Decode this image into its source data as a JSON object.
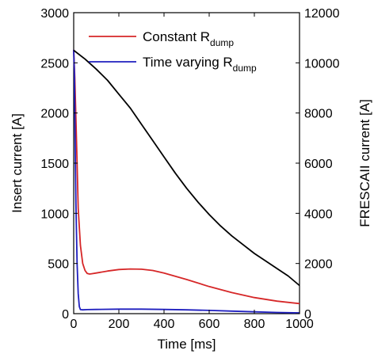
{
  "chart_data": {
    "type": "line",
    "x_axis": {
      "label": "Time [ms]",
      "range": [
        0,
        1000
      ],
      "ticks": [
        0,
        200,
        400,
        600,
        800,
        1000
      ]
    },
    "y_left_axis": {
      "label": "Insert current [A]",
      "range": [
        0,
        3000
      ],
      "ticks": [
        0,
        500,
        1000,
        1500,
        2000,
        2500,
        3000
      ]
    },
    "y_right_axis": {
      "label": "FRESCAII current [A]",
      "range": [
        0,
        12000
      ],
      "ticks": [
        0,
        2000,
        4000,
        6000,
        8000,
        10000,
        12000
      ]
    },
    "grid": false,
    "legend": {
      "position": "top-left",
      "entries": [
        {
          "label": "Constant R",
          "subscript": "dump",
          "color": "#d62728"
        },
        {
          "label": "Time varying R",
          "subscript": "dump",
          "color": "#1f1fbf"
        }
      ]
    },
    "series": [
      {
        "name": "Constant Rdump",
        "axis": "left",
        "color": "#d62728",
        "x": [
          0,
          5,
          10,
          15,
          20,
          30,
          40,
          50,
          60,
          70,
          80,
          100,
          150,
          200,
          250,
          300,
          350,
          400,
          500,
          600,
          700,
          800,
          900,
          1000
        ],
        "y": [
          2630,
          2350,
          1950,
          1500,
          1050,
          680,
          500,
          430,
          400,
          395,
          398,
          405,
          425,
          440,
          445,
          443,
          430,
          405,
          340,
          270,
          210,
          160,
          125,
          100
        ]
      },
      {
        "name": "Time varying Rdump",
        "axis": "left",
        "color": "#1f1fbf",
        "x": [
          0,
          3,
          6,
          10,
          15,
          20,
          25,
          30,
          40,
          60,
          100,
          200,
          300,
          400,
          500,
          600,
          700,
          800,
          900,
          1000
        ],
        "y": [
          2630,
          2400,
          1800,
          1100,
          500,
          200,
          70,
          40,
          38,
          40,
          42,
          45,
          45,
          42,
          38,
          32,
          25,
          18,
          12,
          8
        ]
      },
      {
        "name": "FRESCAII current",
        "axis": "right",
        "color": "#000000",
        "x": [
          0,
          50,
          100,
          150,
          200,
          250,
          300,
          350,
          400,
          450,
          500,
          550,
          600,
          650,
          700,
          750,
          800,
          850,
          900,
          950,
          1000
        ],
        "y": [
          10500,
          10150,
          9750,
          9300,
          8750,
          8200,
          7550,
          6900,
          6250,
          5600,
          5000,
          4450,
          3950,
          3500,
          3100,
          2750,
          2400,
          2100,
          1800,
          1500,
          1120
        ]
      }
    ]
  }
}
